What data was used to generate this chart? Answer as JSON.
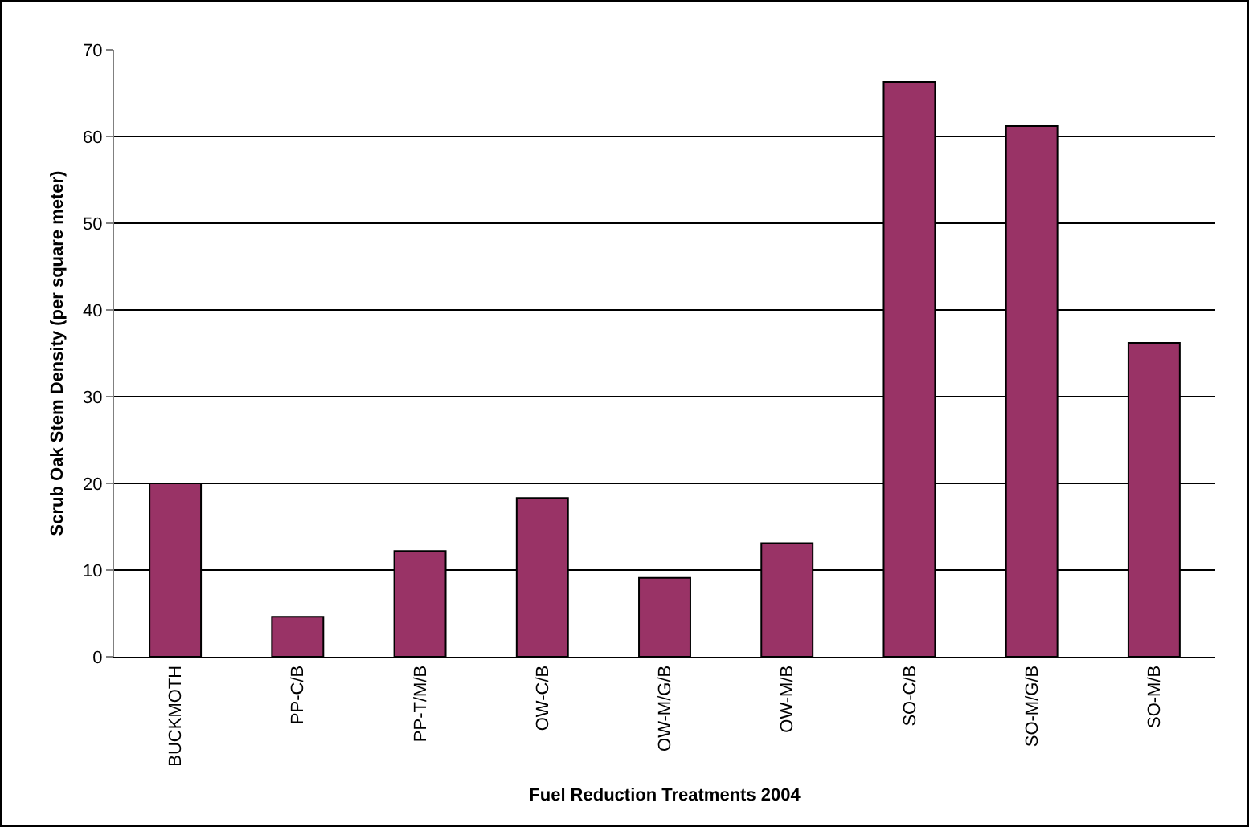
{
  "chart_data": {
    "type": "bar",
    "xlabel": "Fuel Reduction Treatments 2004",
    "ylabel": "Scrub Oak Stem Density (per square meter)",
    "categories": [
      "BUCKMOTH",
      "PP-C/B",
      "PP-T/M/B",
      "OW-C/B",
      "OW-M/G/B",
      "OW-M/B",
      "SO-C/B",
      "SO-M/G/B",
      "SO-M/B"
    ],
    "values": [
      20.0,
      4.6,
      12.2,
      18.3,
      9.1,
      13.1,
      66.3,
      61.2,
      36.2
    ],
    "color": "#993366",
    "ylim": [
      0,
      70
    ],
    "yticks": [
      0,
      10,
      20,
      30,
      40,
      50,
      60,
      70
    ],
    "grid": "y"
  }
}
